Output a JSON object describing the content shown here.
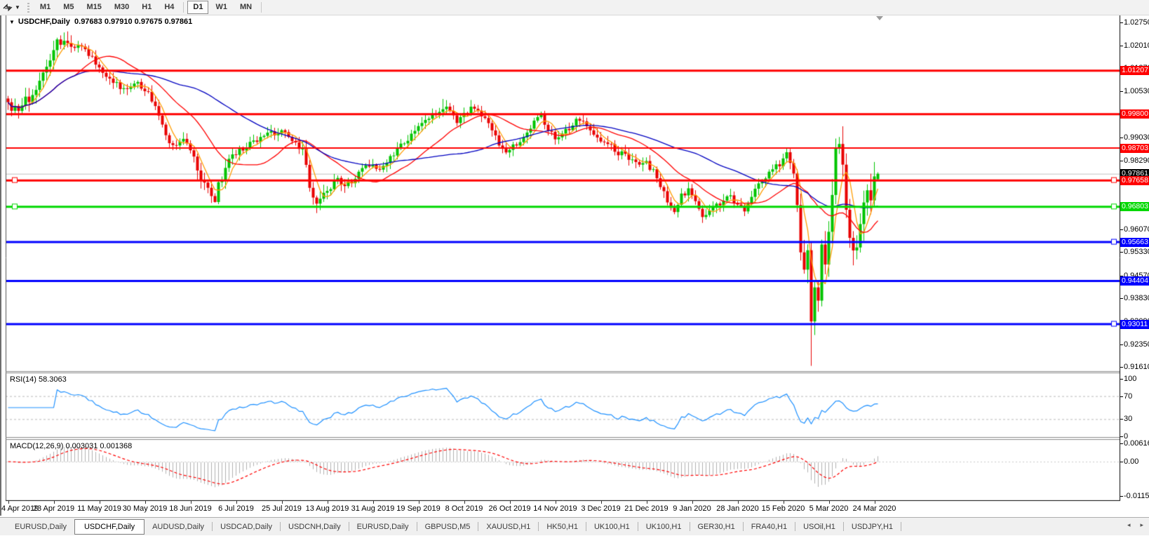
{
  "toolbar": {
    "tool_icon": "chart-cursor-icon",
    "timeframes": [
      {
        "label": "M1",
        "active": false
      },
      {
        "label": "M5",
        "active": false
      },
      {
        "label": "M15",
        "active": false
      },
      {
        "label": "M30",
        "active": false
      },
      {
        "label": "H1",
        "active": false
      },
      {
        "label": "H4",
        "active": false
      },
      {
        "label": "D1",
        "active": true,
        "group_start": true
      },
      {
        "label": "W1",
        "active": false
      },
      {
        "label": "MN",
        "active": false
      }
    ]
  },
  "chart": {
    "title": {
      "symbol": "USDCHF,Daily",
      "ohlc_text": "0.97683 0.97910 0.97675 0.97861"
    }
  },
  "chart_data": {
    "type": "candlestick",
    "symbol": "USDCHF",
    "timeframe": "Daily",
    "bars_visible": 249,
    "price_range": {
      "top": 1.0298,
      "bottom": 0.9148
    },
    "y_axis_ticks": [
      "1.02750",
      "1.02010",
      "1.01270",
      "1.00530",
      "0.99790",
      "0.99030",
      "0.98290",
      "0.97550",
      "0.96810",
      "0.96070",
      "0.95330",
      "0.94570",
      "0.93830",
      "0.93090",
      "0.92350",
      "0.91610"
    ],
    "x_axis_dates": [
      "4 Apr 2019",
      "23 Apr 2019",
      "11 May 2019",
      "30 May 2019",
      "18 Jun 2019",
      "6 Jul 2019",
      "25 Jul 2019",
      "13 Aug 2019",
      "31 Aug 2019",
      "19 Sep 2019",
      "8 Oct 2019",
      "26 Oct 2019",
      "14 Nov 2019",
      "3 Dec 2019",
      "21 Dec 2019",
      "9 Jan 2020",
      "28 Jan 2020",
      "15 Feb 2020",
      "5 Mar 2020",
      "24 Mar 2020"
    ],
    "horizontal_lines": [
      {
        "price": 1.01207,
        "label": "1.01207",
        "color": "#ff0000",
        "width": 3,
        "anchors": ""
      },
      {
        "price": 0.998,
        "label": "0.99800",
        "color": "#ff0000",
        "width": 3,
        "anchors": ""
      },
      {
        "price": 0.98703,
        "label": "0.98703",
        "color": "#ff0000",
        "width": 2,
        "anchors": ""
      },
      {
        "price": 0.97658,
        "label": "0.97658",
        "color": "#ff0000",
        "width": 3,
        "anchors": "lr"
      },
      {
        "price": 0.96803,
        "label": "0.96803",
        "color": "#00d800",
        "width": 3,
        "anchors": "lr"
      },
      {
        "price": 0.95663,
        "label": "0.95663",
        "color": "#0000ff",
        "width": 3,
        "anchors": "r"
      },
      {
        "price": 0.94404,
        "label": "0.94404",
        "color": "#0000ff",
        "width": 3,
        "anchors": ""
      },
      {
        "price": 0.93011,
        "label": "0.93011",
        "color": "#0000ff",
        "width": 3,
        "anchors": "r"
      }
    ],
    "current_price": {
      "price": 0.97861,
      "label": "0.97861",
      "line_color": "#c0c0c0",
      "badge_color": "#000000"
    },
    "moving_averages": [
      {
        "period": 5,
        "color": "#ff9c00"
      },
      {
        "period": 20,
        "color": "#ff0000"
      },
      {
        "period": 50,
        "color": "#0000c0"
      }
    ],
    "candle_anchors": [
      [
        0,
        1.0005
      ],
      [
        2,
        0.9998
      ],
      [
        4,
        1.0012
      ],
      [
        6,
        1.003
      ],
      [
        8,
        1.006
      ],
      [
        10,
        1.01
      ],
      [
        12,
        1.016
      ],
      [
        14,
        1.021
      ],
      [
        16,
        1.0215
      ],
      [
        18,
        1.0185
      ],
      [
        20,
        1.0205
      ],
      [
        22,
        1.019
      ],
      [
        24,
        1.0155
      ],
      [
        26,
        1.0125
      ],
      [
        28,
        1.0108
      ],
      [
        30,
        1.009
      ],
      [
        32,
        1.0062
      ],
      [
        34,
        1.0068
      ],
      [
        36,
        1.008
      ],
      [
        38,
        1.0072
      ],
      [
        40,
        1.0055
      ],
      [
        42,
        1.0
      ],
      [
        44,
        0.9935
      ],
      [
        46,
        0.989
      ],
      [
        48,
        0.988
      ],
      [
        50,
        0.9895
      ],
      [
        52,
        0.987
      ],
      [
        54,
        0.98
      ],
      [
        56,
        0.9755
      ],
      [
        58,
        0.972
      ],
      [
        59,
        0.971
      ],
      [
        61,
        0.978
      ],
      [
        63,
        0.984
      ],
      [
        65,
        0.9858
      ],
      [
        67,
        0.987
      ],
      [
        70,
        0.989
      ],
      [
        72,
        0.99
      ],
      [
        74,
        0.991
      ],
      [
        76,
        0.992
      ],
      [
        78,
        0.9925
      ],
      [
        80,
        0.9905
      ],
      [
        82,
        0.989
      ],
      [
        84,
        0.9855
      ],
      [
        85,
        0.98
      ],
      [
        86,
        0.973
      ],
      [
        87,
        0.97
      ],
      [
        88,
        0.968
      ],
      [
        90,
        0.972
      ],
      [
        92,
        0.974
      ],
      [
        94,
        0.977
      ],
      [
        96,
        0.9745
      ],
      [
        98,
        0.976
      ],
      [
        100,
        0.9785
      ],
      [
        102,
        0.9805
      ],
      [
        104,
        0.9815
      ],
      [
        106,
        0.9795
      ],
      [
        108,
        0.983
      ],
      [
        110,
        0.9855
      ],
      [
        112,
        0.9875
      ],
      [
        114,
        0.9895
      ],
      [
        116,
        0.9925
      ],
      [
        118,
        0.995
      ],
      [
        120,
        0.997
      ],
      [
        122,
        0.9985
      ],
      [
        124,
        1.0005
      ],
      [
        126,
        0.999
      ],
      [
        128,
        0.996
      ],
      [
        130,
        0.9975
      ],
      [
        132,
        0.9995
      ],
      [
        134,
        0.9985
      ],
      [
        136,
        0.996
      ],
      [
        138,
        0.992
      ],
      [
        140,
        0.988
      ],
      [
        142,
        0.986
      ],
      [
        144,
        0.9875
      ],
      [
        146,
        0.9895
      ],
      [
        148,
        0.9925
      ],
      [
        150,
        0.996
      ],
      [
        152,
        0.997
      ],
      [
        154,
        0.9935
      ],
      [
        156,
        0.99
      ],
      [
        158,
        0.991
      ],
      [
        160,
        0.9935
      ],
      [
        162,
        0.996
      ],
      [
        164,
        0.995
      ],
      [
        166,
        0.993
      ],
      [
        168,
        0.9905
      ],
      [
        171,
        0.988
      ],
      [
        174,
        0.9855
      ],
      [
        177,
        0.984
      ],
      [
        180,
        0.982
      ],
      [
        182,
        0.9825
      ],
      [
        184,
        0.979
      ],
      [
        186,
        0.975
      ],
      [
        188,
        0.97
      ],
      [
        190,
        0.9668
      ],
      [
        192,
        0.9715
      ],
      [
        194,
        0.973
      ],
      [
        196,
        0.969
      ],
      [
        198,
        0.965
      ],
      [
        200,
        0.966
      ],
      [
        202,
        0.968
      ],
      [
        204,
        0.97
      ],
      [
        206,
        0.972
      ],
      [
        208,
        0.9685
      ],
      [
        210,
        0.966
      ],
      [
        212,
        0.971
      ],
      [
        214,
        0.975
      ],
      [
        216,
        0.9775
      ],
      [
        218,
        0.98
      ],
      [
        220,
        0.982
      ],
      [
        222,
        0.985
      ],
      [
        223,
        0.983
      ],
      [
        224,
        0.977
      ],
      [
        225,
        0.968
      ],
      [
        226,
        0.956
      ],
      [
        227,
        0.947
      ],
      [
        228,
        0.956
      ],
      [
        229,
        0.93
      ],
      [
        230,
        0.942
      ],
      [
        231,
        0.938
      ],
      [
        232,
        0.953
      ],
      [
        233,
        0.948
      ],
      [
        234,
        0.96
      ],
      [
        235,
        0.972
      ],
      [
        236,
        0.985
      ],
      [
        237,
        0.988
      ],
      [
        238,
        0.98
      ],
      [
        239,
        0.968
      ],
      [
        240,
        0.958
      ],
      [
        241,
        0.951
      ],
      [
        242,
        0.956
      ],
      [
        243,
        0.962
      ],
      [
        244,
        0.968
      ],
      [
        245,
        0.973
      ],
      [
        246,
        0.97
      ],
      [
        247,
        0.976
      ],
      [
        248,
        0.97861
      ]
    ],
    "candle_overrides": {
      "14": {
        "h": 1.0226
      },
      "59": {
        "l": 0.9693
      },
      "88": {
        "l": 0.9659
      },
      "124": {
        "h": 1.0028
      },
      "229": {
        "l": 0.9165
      },
      "237": {
        "h": 0.9905
      },
      "241": {
        "l": 0.949
      },
      "248": {
        "o": 0.97683,
        "h": 0.9791,
        "l": 0.97675,
        "c": 0.97861
      }
    }
  },
  "rsi": {
    "label": "RSI(14) 58.3063",
    "period": 14,
    "value": "58.3063",
    "axis_levels": [
      "100",
      "70",
      "30",
      "0"
    ],
    "dashed_levels": [
      70,
      30
    ],
    "line_color": "#1e90ff"
  },
  "macd": {
    "label": "MACD(12,26,9) 0.003031 0.001368",
    "fast": 12,
    "slow": 26,
    "signal": 9,
    "values": [
      "0.003031",
      "0.001368"
    ],
    "axis_labels": [
      "0.006167",
      "0.00",
      "-0.01153"
    ],
    "hist_color": "#b0b0b0",
    "signal_color": "#ff0000"
  },
  "colors": {
    "bull": "#00c400",
    "bear": "#e80000",
    "axis_line": "#000000"
  },
  "tabs": [
    {
      "label": "EURUSD,Daily",
      "active": false
    },
    {
      "label": "USDCHF,Daily",
      "active": true
    },
    {
      "label": "AUDUSD,Daily",
      "active": false
    },
    {
      "label": "USDCAD,Daily",
      "active": false
    },
    {
      "label": "USDCNH,Daily",
      "active": false
    },
    {
      "label": "EURUSD,Daily",
      "active": false
    },
    {
      "label": "GBPUSD,M5",
      "active": false
    },
    {
      "label": "XAUUSD,H1",
      "active": false
    },
    {
      "label": "HK50,H1",
      "active": false
    },
    {
      "label": "UK100,H1",
      "active": false
    },
    {
      "label": "UK100,H1",
      "active": false
    },
    {
      "label": "GER30,H1",
      "active": false
    },
    {
      "label": "FRA40,H1",
      "active": false
    },
    {
      "label": "USOil,H1",
      "active": false
    },
    {
      "label": "USDJPY,H1",
      "active": false
    }
  ],
  "tab_scroll": {
    "left": "◂",
    "right": "▸"
  }
}
